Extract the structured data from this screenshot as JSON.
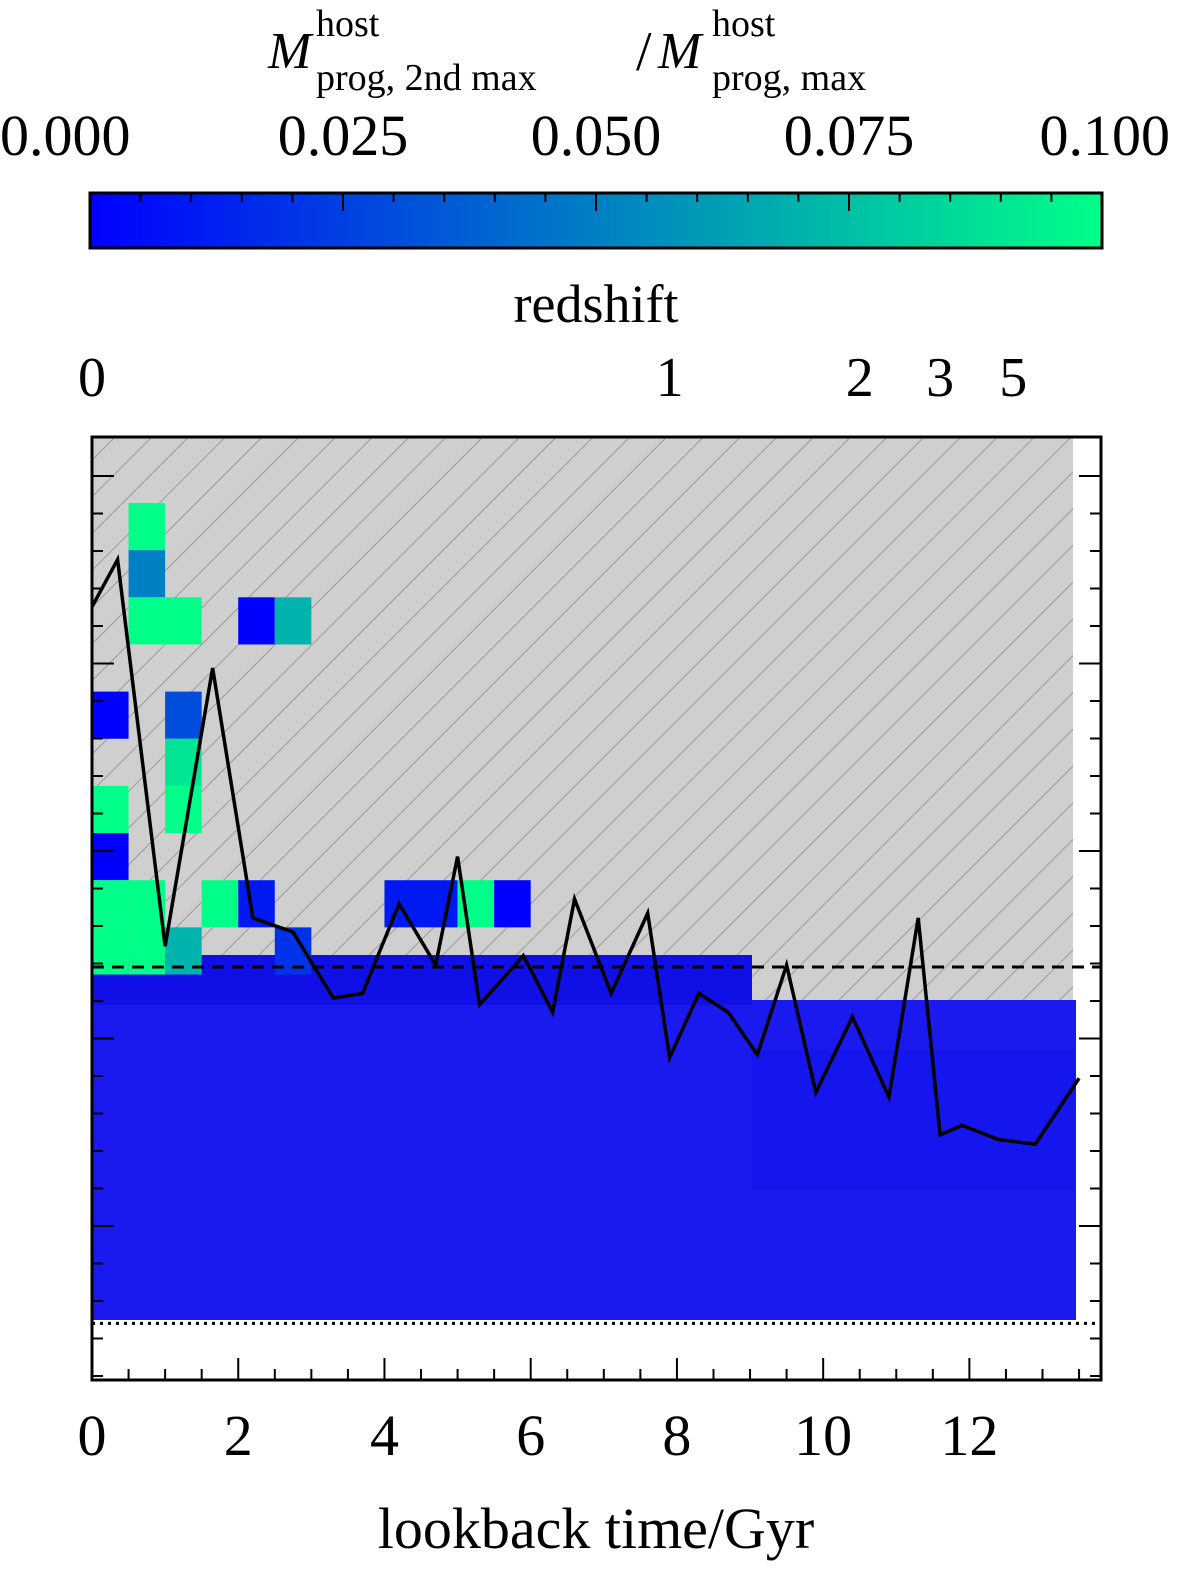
{
  "chart_data": {
    "type": "heatmap",
    "xlabel": "lookback time/Gyr",
    "xlim": [
      0,
      13.8
    ],
    "x_ticks": [
      0,
      2,
      4,
      6,
      8,
      10,
      12
    ],
    "top_axis": {
      "label": "redshift",
      "ticks": [
        0,
        1,
        2,
        3,
        5
      ]
    },
    "colorbar": {
      "label_main": "M",
      "label_sup": "host",
      "label_sub_num": "prog, 2nd max",
      "label_sub_den": "prog, max",
      "label_slash": "/",
      "range": [
        0.0,
        0.1
      ],
      "ticks": [
        "0.000",
        "0.025",
        "0.050",
        "0.075",
        "0.100"
      ],
      "colors": [
        "#0000ff",
        "#00ff99"
      ]
    },
    "ylim": [
      0,
      1
    ],
    "y_tick_labels_shown": false,
    "hatched_region": "above the black line (no data)",
    "dashed_line_y": 0.438,
    "dotted_line_y": 0.06,
    "cells": [
      [
        1.0,
        0.905,
        0.1
      ],
      [
        1.0,
        0.855,
        0.05
      ],
      [
        1.0,
        0.805,
        0.1
      ],
      [
        2.0,
        0.805,
        0.1
      ],
      [
        4.0,
        0.805,
        0.0
      ],
      [
        5.0,
        0.805,
        0.07
      ],
      [
        2.0,
        0.705,
        0.03
      ],
      [
        2.0,
        0.655,
        0.09
      ],
      [
        2.0,
        0.605,
        0.1
      ],
      [
        0.0,
        0.705,
        0.0
      ],
      [
        0.0,
        0.605,
        0.1
      ],
      [
        0.0,
        0.555,
        0.0
      ],
      [
        0.0,
        0.505,
        0.1
      ],
      [
        1.0,
        0.505,
        0.1
      ],
      [
        0.0,
        0.455,
        0.1
      ],
      [
        1.0,
        0.455,
        0.1
      ],
      [
        2.0,
        0.455,
        0.07
      ],
      [
        3.0,
        0.505,
        0.1
      ],
      [
        4.0,
        0.505,
        0.01
      ],
      [
        5.0,
        0.455,
        0.02
      ],
      [
        8.0,
        0.505,
        0.01
      ],
      [
        9.0,
        0.505,
        0.01
      ],
      [
        10.0,
        0.505,
        0.1
      ],
      [
        11.0,
        0.505,
        0.0
      ]
    ],
    "black_line": {
      "x": [
        0.0,
        0.35,
        1.0,
        1.65,
        2.2,
        2.75,
        3.3,
        3.7,
        4.2,
        4.7,
        5.0,
        5.3,
        5.9,
        6.3,
        6.6,
        7.1,
        7.6,
        7.9,
        8.3,
        8.7,
        9.1,
        9.5,
        9.9,
        10.4,
        10.9,
        11.3,
        11.6,
        11.9,
        12.4,
        12.9,
        13.5
      ],
      "y": [
        0.82,
        0.87,
        0.46,
        0.755,
        0.49,
        0.475,
        0.405,
        0.41,
        0.505,
        0.44,
        0.555,
        0.398,
        0.45,
        0.39,
        0.51,
        0.41,
        0.495,
        0.342,
        0.41,
        0.39,
        0.345,
        0.44,
        0.305,
        0.385,
        0.3,
        0.49,
        0.26,
        0.27,
        0.255,
        0.25,
        0.32
      ]
    }
  }
}
